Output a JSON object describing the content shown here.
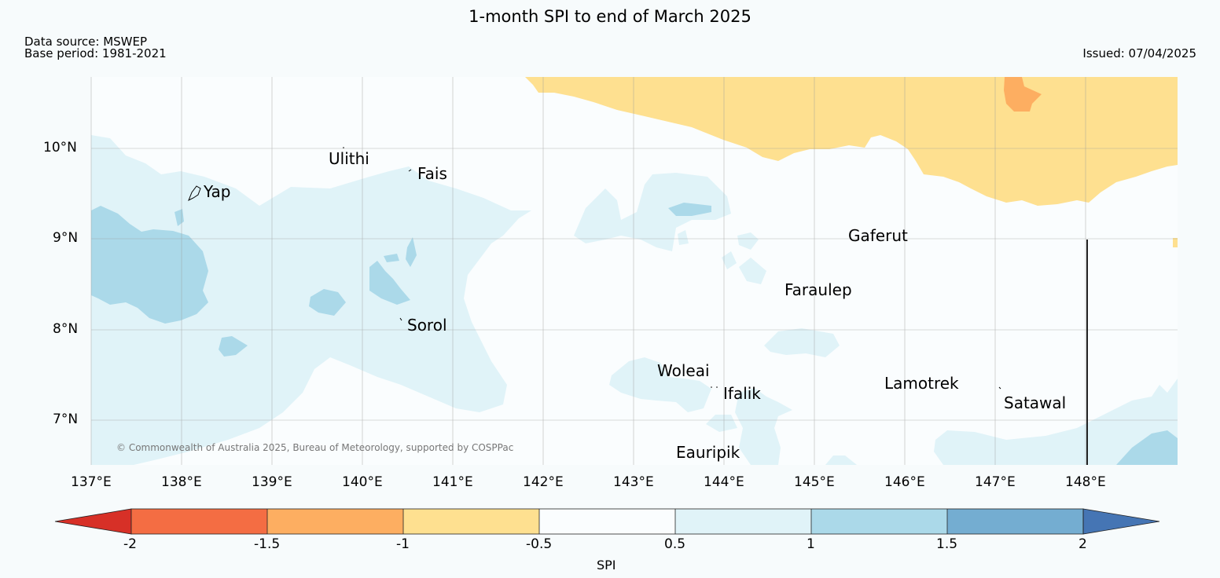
{
  "header": {
    "title": "1-month SPI to end of March 2025",
    "data_source": "Data source: MSWEP",
    "base_period": "Base period: 1981-2021",
    "issued": "Issued: 07/04/2025"
  },
  "map": {
    "lon_ticks": [
      "137°E",
      "138°E",
      "139°E",
      "140°E",
      "141°E",
      "142°E",
      "143°E",
      "144°E",
      "145°E",
      "146°E",
      "147°E",
      "148°E"
    ],
    "lat_ticks": [
      "10°N",
      "9°N",
      "8°N",
      "7°N"
    ],
    "places": {
      "yap": "Yap",
      "ulithi": "Ulithi",
      "fais": "Fais",
      "sorol": "Sorol",
      "gaferut": "Gaferut",
      "faraulep": "Faraulep",
      "woleai": "Woleai",
      "ifalik": "Ifalik",
      "lamotrek": "Lamotrek",
      "satawal": "Satawal",
      "eauripik": "Eauripik"
    },
    "copyright": "© Commonwealth of Australia 2025, Bureau of Meteorology, supported by COSPPac",
    "colors": {
      "ocean_normal": "#fafdfe",
      "wet_1_to_1_5": "#e0f3f8",
      "wet_1_5_to_2": "#abd9e9",
      "dry_minus_1_to_minus_0_5": "#fee090",
      "dry_minus_1_5_to_minus_1": "#fdae61"
    }
  },
  "colorbar": {
    "label": "SPI",
    "ticks": [
      "-2",
      "-1.5",
      "-1",
      "-0.5",
      "0.5",
      "1",
      "1.5",
      "2"
    ],
    "colors": [
      "#d73027",
      "#f46d43",
      "#fdae61",
      "#fee090",
      "#fafdfe",
      "#e0f3f8",
      "#abd9e9",
      "#74add1",
      "#4575b4"
    ]
  }
}
